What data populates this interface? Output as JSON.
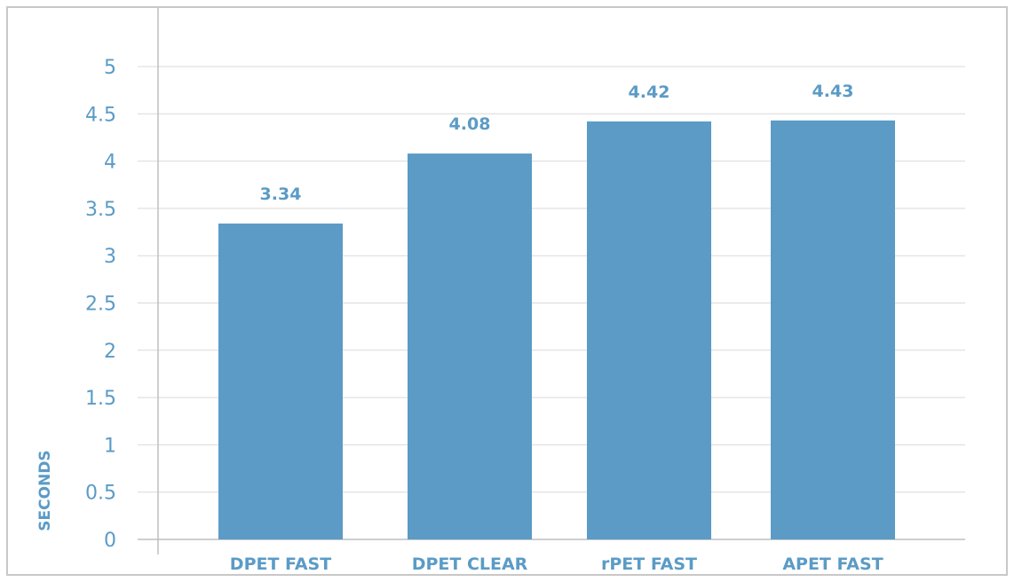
{
  "chart_data": {
    "type": "bar",
    "categories": [
      "DPET FAST",
      "DPET CLEAR",
      "rPET FAST",
      "APET FAST"
    ],
    "values": [
      3.34,
      4.08,
      4.42,
      4.43
    ],
    "data_labels": [
      "3.34",
      "4.08",
      "4.42",
      "4.43"
    ],
    "ylabel": "SECONDS",
    "ylim": [
      0,
      5
    ],
    "yticks": [
      "0",
      "0.5",
      "1",
      "1.5",
      "2",
      "2.5",
      "3",
      "3.5",
      "4",
      "4.5",
      "5"
    ],
    "ytick_values": [
      0,
      0.5,
      1,
      1.5,
      2,
      2.5,
      3,
      3.5,
      4,
      4.5,
      5
    ],
    "grid": true,
    "colors": {
      "bar": "#5b9bc6",
      "text": "#5b9bc6",
      "grid": "#d9d9d9",
      "axis": "#bfbfbf",
      "frame": "#c8c8c8"
    }
  }
}
